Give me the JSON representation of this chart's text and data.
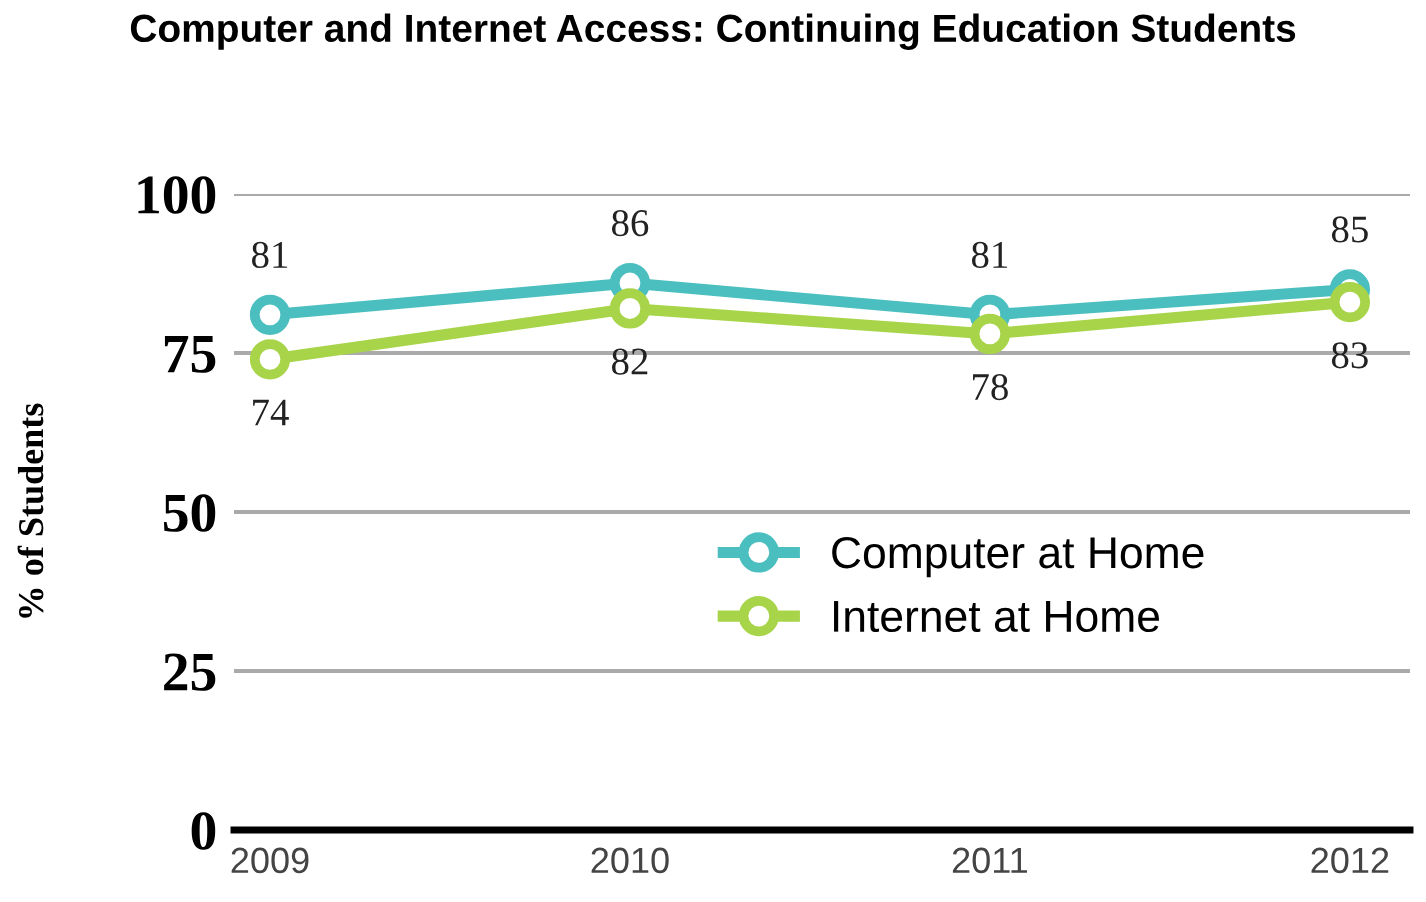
{
  "chart_data": {
    "type": "line",
    "title": "Computer and Internet Access: Continuing Education Students",
    "ylabel": "% of Students",
    "categories": [
      "2009",
      "2010",
      "2011",
      "2012"
    ],
    "series": [
      {
        "name": "Computer at Home",
        "color": "#4bbfbf",
        "values": [
          81,
          86,
          81,
          85
        ]
      },
      {
        "name": "Internet at Home",
        "color": "#a8d44a",
        "values": [
          74,
          82,
          78,
          83
        ]
      }
    ],
    "ylim": [
      0,
      100
    ],
    "yticks": [
      0,
      25,
      50,
      75,
      100
    ],
    "grid": "y",
    "legend": "right",
    "marker": "circle",
    "line_style": "solid",
    "data_labels": true
  }
}
